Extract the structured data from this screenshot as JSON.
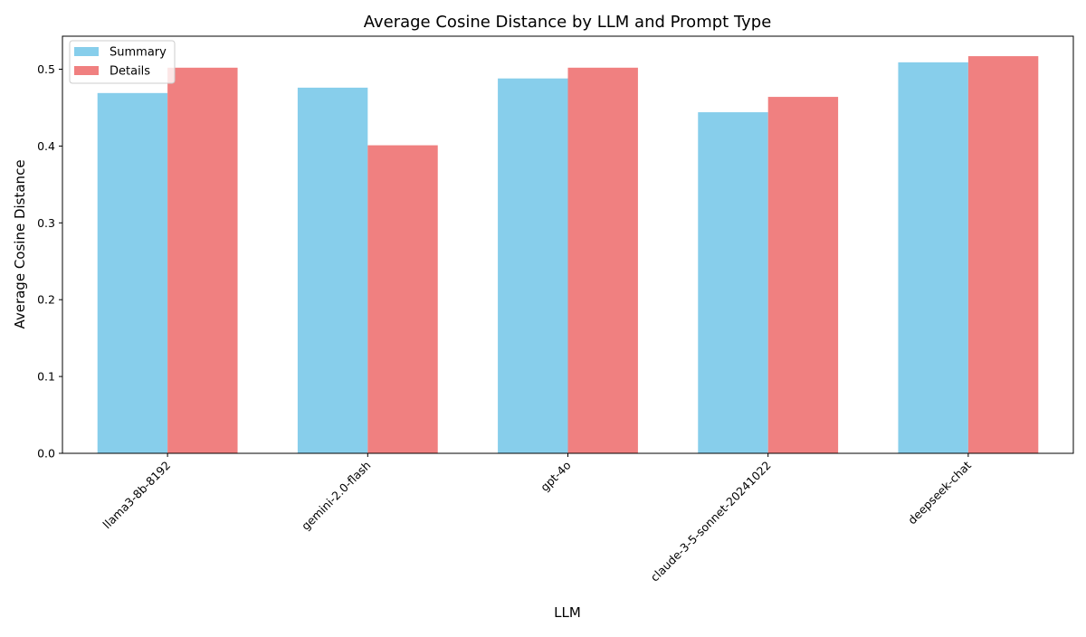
{
  "chart_data": {
    "type": "bar",
    "title": "Average Cosine Distance by LLM and Prompt Type",
    "xlabel": "LLM",
    "ylabel": "Average Cosine Distance",
    "categories": [
      "llama3-8b-8192",
      "gemini-2.0-flash",
      "gpt-4o",
      "claude-3-5-sonnet-20241022",
      "deepseek-chat"
    ],
    "series": [
      {
        "name": "Summary",
        "color": "#87CEEB",
        "values": [
          0.469,
          0.476,
          0.488,
          0.444,
          0.509
        ]
      },
      {
        "name": "Details",
        "color": "#F08080",
        "values": [
          0.502,
          0.401,
          0.502,
          0.464,
          0.517
        ]
      }
    ],
    "ylim": [
      0,
      0.543
    ],
    "yticks": [
      "0.0",
      "0.1",
      "0.2",
      "0.3",
      "0.4",
      "0.5"
    ],
    "grid": false,
    "legend_position": "top-left"
  }
}
